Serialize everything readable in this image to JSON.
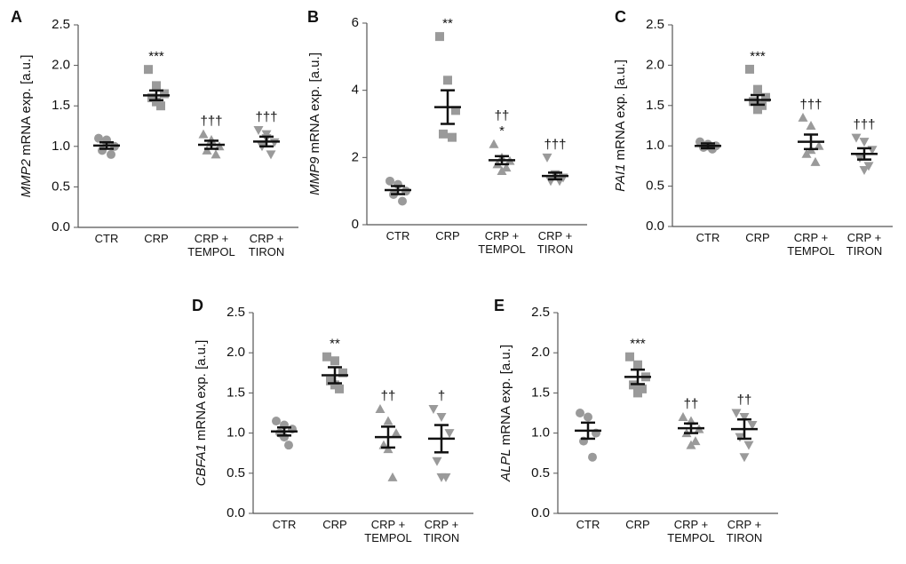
{
  "chart_data": [
    {
      "type": "dotplot",
      "panel": "A",
      "ylabel_gene": "MMP2",
      "ylabel": "mRNA exp. [a.u.]",
      "categories": [
        "CTR",
        "CRP",
        "CRP + TEMPOL",
        "CRP + TIRON"
      ],
      "points": [
        [
          1.1,
          1.05,
          1.0,
          0.95,
          0.9,
          1.08
        ],
        [
          1.95,
          1.75,
          1.65,
          1.6,
          1.5,
          1.55
        ],
        [
          1.15,
          1.05,
          1.0,
          0.95,
          0.9,
          1.08
        ],
        [
          1.2,
          1.15,
          1.05,
          1.0,
          0.9,
          1.1
        ]
      ],
      "means": [
        1.01,
        1.63,
        1.02,
        1.06
      ],
      "errors": [
        0.04,
        0.06,
        0.05,
        0.06
      ],
      "annotations": [
        [],
        [
          "***"
        ],
        [
          "†††"
        ],
        [
          "†††"
        ]
      ],
      "markers": [
        "circle",
        "square",
        "triangle",
        "triangle-down"
      ],
      "color": "#9a9a9a",
      "ylim": [
        0,
        2.5
      ],
      "yticks": [
        {
          "value": 0,
          "label": "0.0"
        },
        0.5,
        {
          "value": 1,
          "label": "1.0"
        },
        1.5,
        {
          "value": 2,
          "label": "2.0"
        },
        2.5
      ]
    },
    {
      "type": "dotplot",
      "panel": "B",
      "ylabel_gene": "MMP9",
      "ylabel": "mRNA exp. [a.u.]",
      "categories": [
        "CTR",
        "CRP",
        "CRP + TEMPOL",
        "CRP + TIRON"
      ],
      "points": [
        [
          1.3,
          1.2,
          1.0,
          0.9,
          0.7
        ],
        [
          5.6,
          4.3,
          3.4,
          2.7,
          2.6
        ],
        [
          2.4,
          2.0,
          1.9,
          1.8,
          1.7,
          1.6
        ],
        [
          2.0,
          1.5,
          1.4,
          1.3,
          1.3
        ]
      ],
      "means": [
        1.03,
        3.5,
        1.92,
        1.45
      ],
      "errors": [
        0.12,
        0.5,
        0.12,
        0.1
      ],
      "annotations": [
        [],
        [
          "**"
        ],
        [
          "††",
          "*"
        ],
        [
          "†††"
        ]
      ],
      "markers": [
        "circle",
        "square",
        "triangle",
        "triangle-down"
      ],
      "color": "#9a9a9a",
      "ylim": [
        0,
        6
      ],
      "yticks": [
        0,
        2,
        4,
        6
      ]
    },
    {
      "type": "dotplot",
      "panel": "C",
      "ylabel_gene": "PAI1",
      "ylabel": "mRNA exp. [a.u.]",
      "categories": [
        "CTR",
        "CRP",
        "CRP + TEMPOL",
        "CRP + TIRON"
      ],
      "points": [
        [
          1.05,
          1.0,
          1.0,
          0.98,
          0.96,
          1.02
        ],
        [
          1.95,
          1.7,
          1.6,
          1.55,
          1.5,
          1.45
        ],
        [
          1.35,
          1.25,
          1.0,
          0.9,
          0.8,
          0.95
        ],
        [
          1.1,
          1.05,
          0.95,
          0.85,
          0.75,
          0.7
        ]
      ],
      "means": [
        1.0,
        1.57,
        1.05,
        0.9
      ],
      "errors": [
        0.03,
        0.06,
        0.09,
        0.07
      ],
      "annotations": [
        [],
        [
          "***"
        ],
        [
          "†††"
        ],
        [
          "†††"
        ]
      ],
      "markers": [
        "circle",
        "square",
        "triangle",
        "triangle-down"
      ],
      "color": "#9a9a9a",
      "ylim": [
        0,
        2.5
      ],
      "yticks": [
        {
          "value": 0,
          "label": "0.0"
        },
        0.5,
        {
          "value": 1,
          "label": "1.0"
        },
        1.5,
        {
          "value": 2,
          "label": "2.0"
        },
        2.5
      ]
    },
    {
      "type": "dotplot",
      "panel": "D",
      "ylabel_gene": "CBFA1",
      "ylabel": "mRNA exp. [a.u.]",
      "categories": [
        "CTR",
        "CRP",
        "CRP + TEMPOL",
        "CRP + TIRON"
      ],
      "points": [
        [
          1.15,
          1.1,
          1.05,
          1.0,
          0.85,
          0.95
        ],
        [
          1.95,
          1.9,
          1.75,
          1.65,
          1.55,
          1.6
        ],
        [
          1.3,
          1.15,
          1.0,
          0.85,
          0.45,
          0.8
        ],
        [
          1.3,
          1.2,
          1.0,
          0.65,
          0.45,
          0.45
        ]
      ],
      "means": [
        1.02,
        1.72,
        0.95,
        0.93
      ],
      "errors": [
        0.05,
        0.1,
        0.13,
        0.17
      ],
      "annotations": [
        [],
        [
          "**"
        ],
        [
          "††"
        ],
        [
          "†"
        ]
      ],
      "markers": [
        "circle",
        "square",
        "triangle",
        "triangle-down"
      ],
      "color": "#9a9a9a",
      "ylim": [
        0,
        2.5
      ],
      "yticks": [
        {
          "value": 0,
          "label": "0.0"
        },
        0.5,
        {
          "value": 1,
          "label": "1.0"
        },
        1.5,
        {
          "value": 2,
          "label": "2.0"
        },
        2.5
      ]
    },
    {
      "type": "dotplot",
      "panel": "E",
      "ylabel_gene": "ALPL",
      "ylabel": "mRNA exp. [a.u.]",
      "categories": [
        "CTR",
        "CRP",
        "CRP + TEMPOL",
        "CRP + TIRON"
      ],
      "points": [
        [
          1.25,
          1.2,
          1.0,
          0.9,
          0.7
        ],
        [
          1.95,
          1.85,
          1.7,
          1.6,
          1.55,
          1.5
        ],
        [
          1.2,
          1.15,
          1.05,
          1.0,
          0.9,
          0.85
        ],
        [
          1.25,
          1.2,
          1.1,
          0.95,
          0.85,
          0.7
        ]
      ],
      "means": [
        1.03,
        1.7,
        1.06,
        1.05
      ],
      "errors": [
        0.1,
        0.09,
        0.06,
        0.12
      ],
      "annotations": [
        [],
        [
          "***"
        ],
        [
          "††"
        ],
        [
          "††"
        ]
      ],
      "markers": [
        "circle",
        "square",
        "triangle",
        "triangle-down"
      ],
      "color": "#9a9a9a",
      "ylim": [
        0,
        2.5
      ],
      "yticks": [
        {
          "value": 0,
          "label": "0.0"
        },
        0.5,
        {
          "value": 1,
          "label": "1.0"
        },
        1.5,
        {
          "value": 2,
          "label": "2.0"
        },
        2.5
      ]
    }
  ]
}
